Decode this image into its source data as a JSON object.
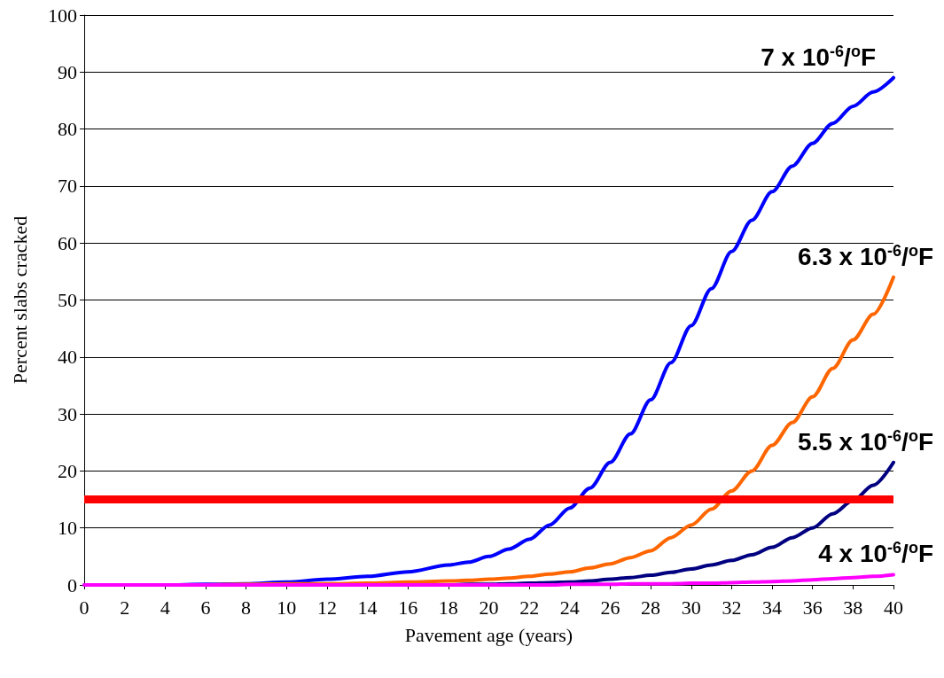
{
  "chart_data": {
    "type": "line",
    "xlabel": "Pavement age (years)",
    "ylabel": "Percent slabs cracked",
    "x": [
      0,
      2,
      4,
      6,
      8,
      10,
      12,
      14,
      16,
      18,
      19,
      20,
      21,
      22,
      23,
      24,
      25,
      26,
      27,
      28,
      29,
      30,
      31,
      32,
      33,
      34,
      35,
      36,
      37,
      38,
      39,
      40
    ],
    "series": [
      {
        "name": "7 x 10$^{-6}$/$^{o}$F",
        "color": "#0000ff",
        "values": [
          0,
          0,
          0,
          0.1,
          0.2,
          0.5,
          1,
          1.5,
          2.3,
          3.5,
          4,
          5,
          6.3,
          8,
          10.5,
          13.5,
          17,
          21.5,
          26.5,
          32.5,
          39,
          45.5,
          52,
          58.5,
          64,
          69,
          73.5,
          77.5,
          81,
          84,
          86.5,
          89
        ]
      },
      {
        "name": "6.3 x 10$^{-6}$/$^{o}$F",
        "color": "#ff6600",
        "values": [
          null,
          null,
          null,
          0,
          0.1,
          0.2,
          0.2,
          0.3,
          0.5,
          0.7,
          0.8,
          1,
          1.2,
          1.5,
          1.9,
          2.3,
          3,
          3.7,
          4.8,
          6,
          8.3,
          10.5,
          13.3,
          16.5,
          20,
          24.5,
          28.5,
          33,
          38,
          43,
          47.5,
          54
        ]
      },
      {
        "name": "5.5 x 10$^{-6}$/$^{o}$F",
        "color": "#000080",
        "values": [
          null,
          null,
          null,
          null,
          null,
          0,
          0,
          0,
          0,
          0,
          0.1,
          0.1,
          0.2,
          0.3,
          0.4,
          0.5,
          0.7,
          1,
          1.3,
          1.7,
          2.2,
          2.8,
          3.5,
          4.3,
          5.3,
          6.6,
          8.3,
          10,
          12.5,
          14.8,
          17.5,
          21.5
        ]
      },
      {
        "name": "4 x 10$^{-6}$/$^{o}$F",
        "color": "#ff00ff",
        "values": [
          0,
          0,
          0,
          0,
          0,
          0,
          0,
          0,
          0,
          0,
          0,
          0,
          0,
          0,
          0,
          0.1,
          0.1,
          0.1,
          0.2,
          0.2,
          0.2,
          0.3,
          0.3,
          0.4,
          0.5,
          0.6,
          0.7,
          0.9,
          1.1,
          1.3,
          1.5,
          1.8
        ]
      }
    ],
    "xlim": [
      0,
      40
    ],
    "xticks": [
      0,
      2,
      4,
      6,
      8,
      10,
      12,
      14,
      16,
      18,
      20,
      22,
      24,
      26,
      28,
      30,
      32,
      34,
      36,
      38,
      40
    ],
    "ylim": [
      0,
      100
    ],
    "yticks": [
      0,
      10,
      20,
      30,
      40,
      50,
      60,
      70,
      80,
      90,
      100
    ],
    "grid": "y",
    "marker": "none",
    "line_style": "solid",
    "ref_lines": [
      {
        "axis": "y",
        "value": 15,
        "color": "#ff0000"
      }
    ]
  }
}
